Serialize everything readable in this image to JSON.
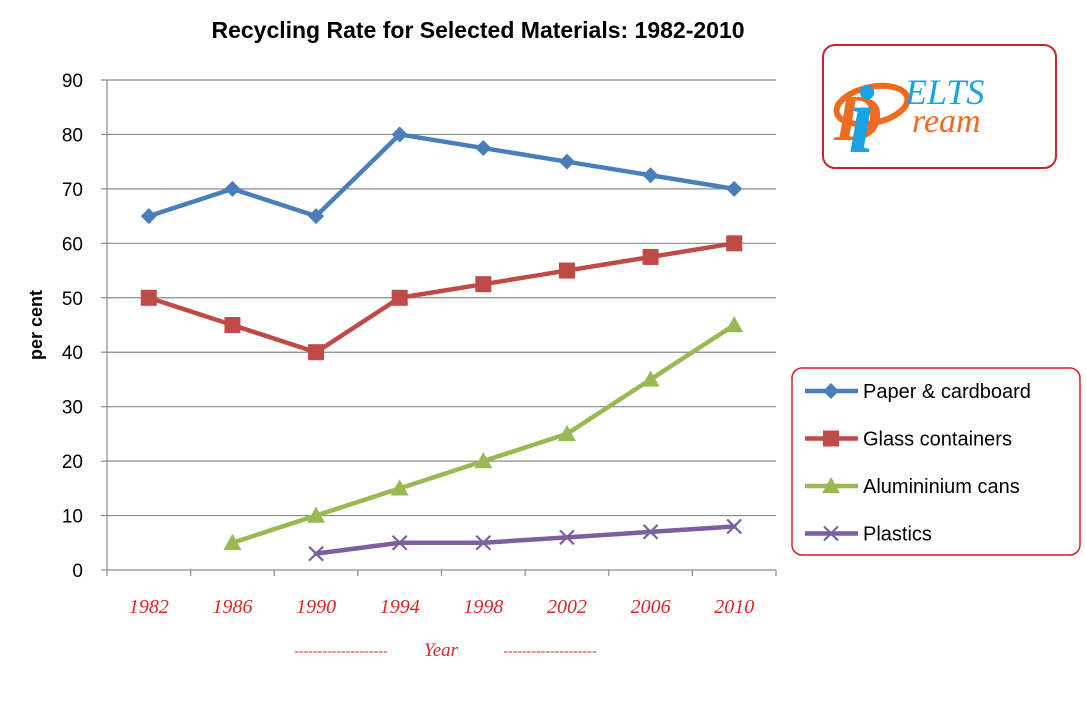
{
  "chart_data": {
    "type": "line",
    "title": "Recycling Rate for Selected Materials: 1982-2010",
    "xlabel": "Year",
    "ylabel": "per cent",
    "categories": [
      "1982",
      "1986",
      "1990",
      "1994",
      "1998",
      "2002",
      "2006",
      "2010"
    ],
    "ylim": [
      0,
      90
    ],
    "yticks": [
      "0",
      "10",
      "20",
      "30",
      "40",
      "50",
      "60",
      "70",
      "80",
      "90"
    ],
    "grid": true,
    "legend_position": "right",
    "series": [
      {
        "name": "Paper & cardboard",
        "color": "#4a7ebb",
        "marker": "diamond",
        "values": [
          65,
          70,
          65,
          80,
          77.5,
          75,
          72.5,
          70
        ]
      },
      {
        "name": "Glass containers",
        "color": "#be4b48",
        "marker": "square",
        "values": [
          50,
          45,
          40,
          50,
          52.5,
          55,
          57.5,
          60
        ]
      },
      {
        "name": "Alumininium cans",
        "color": "#98b954",
        "marker": "triangle",
        "values": [
          null,
          5,
          10,
          15,
          20,
          25,
          35,
          45
        ]
      },
      {
        "name": "Plastics",
        "color": "#7d5fa0",
        "marker": "x",
        "values": [
          null,
          null,
          3,
          5,
          5,
          6,
          7,
          8
        ]
      }
    ]
  },
  "xlabel_dashes": "--------------------",
  "logo": {
    "letter_i": "i",
    "letter_d": "D",
    "word_top": "ELTS",
    "word_bottom": "ream",
    "border_color": "#d0202a"
  }
}
